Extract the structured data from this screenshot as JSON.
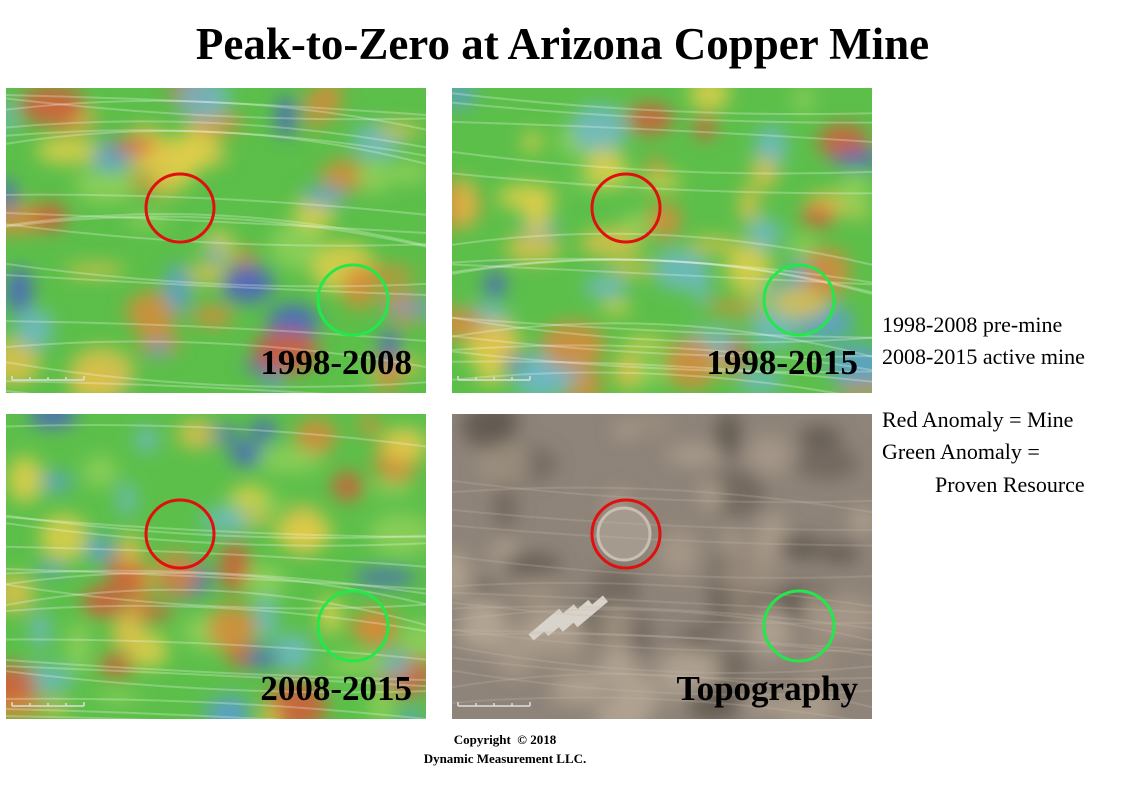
{
  "title": "Peak-to-Zero at Arizona Copper Mine",
  "panels": [
    {
      "label": "1998-2008"
    },
    {
      "label": "1998-2015"
    },
    {
      "label": "2008-2015"
    },
    {
      "label": "Topography"
    }
  ],
  "notes": [
    "1998-2008 pre-mine",
    "2008-2015 active mine",
    "Red Anomaly = Mine",
    "Green Anomaly =",
    "Proven Resource"
  ],
  "footer": [
    "Copyright  © 2018",
    "Dynamic Measurement LLC."
  ]
}
